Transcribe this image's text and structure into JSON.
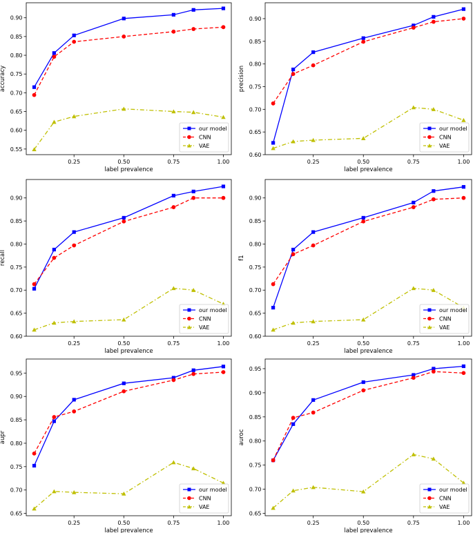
{
  "chart_data": [
    {
      "type": "line",
      "ylabel": "accuracy",
      "xlabel": "label prevalence",
      "x": [
        0.05,
        0.15,
        0.25,
        0.5,
        0.75,
        0.85,
        1.0
      ],
      "xlim": [
        0.01,
        1.04
      ],
      "xticks": [
        "0.25",
        "0.50",
        "0.75",
        "1.00"
      ],
      "ylim": [
        0.535,
        0.94
      ],
      "yticks": [
        "0.55",
        "0.60",
        "0.65",
        "0.70",
        "0.75",
        "0.80",
        "0.85",
        "0.90"
      ],
      "legend": "lower-right",
      "series": [
        {
          "name": "our model",
          "color": "#0000ff",
          "marker": "square",
          "dash": "solid",
          "values": [
            0.715,
            0.806,
            0.853,
            0.898,
            0.908,
            0.921,
            0.925
          ]
        },
        {
          "name": "CNN",
          "color": "#ff0000",
          "marker": "circle",
          "dash": "dashed",
          "values": [
            0.694,
            0.796,
            0.836,
            0.85,
            0.863,
            0.87,
            0.875
          ]
        },
        {
          "name": "VAE",
          "color": "#bfbf00",
          "marker": "triangle",
          "dash": "dashdot",
          "values": [
            0.549,
            0.622,
            0.637,
            0.657,
            0.65,
            0.648,
            0.635
          ]
        }
      ]
    },
    {
      "type": "line",
      "ylabel": "precision",
      "xlabel": "label prevalence",
      "x": [
        0.05,
        0.15,
        0.25,
        0.5,
        0.75,
        0.85,
        1.0
      ],
      "xlim": [
        0.01,
        1.04
      ],
      "xticks": [
        "0.25",
        "0.50",
        "0.75",
        "1.00"
      ],
      "ylim": [
        0.6,
        0.935
      ],
      "yticks": [
        "0.60",
        "0.65",
        "0.70",
        "0.75",
        "0.80",
        "0.85",
        "0.90"
      ],
      "legend": "lower-right",
      "series": [
        {
          "name": "our model",
          "color": "#0000ff",
          "marker": "square",
          "dash": "solid",
          "values": [
            0.626,
            0.788,
            0.826,
            0.857,
            0.885,
            0.904,
            0.921
          ]
        },
        {
          "name": "CNN",
          "color": "#ff0000",
          "marker": "circle",
          "dash": "dashed",
          "values": [
            0.713,
            0.778,
            0.797,
            0.849,
            0.88,
            0.893,
            0.9
          ]
        },
        {
          "name": "VAE",
          "color": "#bfbf00",
          "marker": "triangle",
          "dash": "dashdot",
          "values": [
            0.614,
            0.629,
            0.632,
            0.636,
            0.704,
            0.7,
            0.676
          ]
        }
      ]
    },
    {
      "type": "line",
      "ylabel": "recall",
      "xlabel": "label prevalence",
      "x": [
        0.05,
        0.15,
        0.25,
        0.5,
        0.75,
        0.85,
        1.0
      ],
      "xlim": [
        0.01,
        1.04
      ],
      "xticks": [
        "0.25",
        "0.50",
        "0.75",
        "1.00"
      ],
      "ylim": [
        0.6,
        0.94
      ],
      "yticks": [
        "0.60",
        "0.65",
        "0.70",
        "0.75",
        "0.80",
        "0.85",
        "0.90"
      ],
      "legend": "lower-right",
      "series": [
        {
          "name": "our model",
          "color": "#0000ff",
          "marker": "square",
          "dash": "solid",
          "values": [
            0.703,
            0.788,
            0.826,
            0.857,
            0.905,
            0.914,
            0.925
          ]
        },
        {
          "name": "CNN",
          "color": "#ff0000",
          "marker": "circle",
          "dash": "dashed",
          "values": [
            0.713,
            0.77,
            0.797,
            0.849,
            0.88,
            0.9,
            0.9
          ]
        },
        {
          "name": "VAE",
          "color": "#bfbf00",
          "marker": "triangle",
          "dash": "dashdot",
          "values": [
            0.614,
            0.629,
            0.632,
            0.636,
            0.704,
            0.7,
            0.67
          ]
        }
      ]
    },
    {
      "type": "line",
      "ylabel": "f1",
      "xlabel": "label prevalence",
      "x": [
        0.05,
        0.15,
        0.25,
        0.5,
        0.75,
        0.85,
        1.0
      ],
      "xlim": [
        0.01,
        1.04
      ],
      "xticks": [
        "0.25",
        "0.50",
        "0.75",
        "1.00"
      ],
      "ylim": [
        0.6,
        0.94
      ],
      "yticks": [
        "0.60",
        "0.65",
        "0.70",
        "0.75",
        "0.80",
        "0.85",
        "0.90"
      ],
      "legend": "lower-right",
      "series": [
        {
          "name": "our model",
          "color": "#0000ff",
          "marker": "square",
          "dash": "solid",
          "values": [
            0.662,
            0.788,
            0.826,
            0.857,
            0.89,
            0.915,
            0.924
          ]
        },
        {
          "name": "CNN",
          "color": "#ff0000",
          "marker": "circle",
          "dash": "dashed",
          "values": [
            0.713,
            0.778,
            0.797,
            0.849,
            0.88,
            0.897,
            0.9
          ]
        },
        {
          "name": "VAE",
          "color": "#bfbf00",
          "marker": "triangle",
          "dash": "dashdot",
          "values": [
            0.614,
            0.629,
            0.632,
            0.636,
            0.704,
            0.7,
            0.662
          ]
        }
      ]
    },
    {
      "type": "line",
      "ylabel": "aupr",
      "xlabel": "label prevalence",
      "x": [
        0.05,
        0.15,
        0.25,
        0.5,
        0.75,
        0.85,
        1.0
      ],
      "xlim": [
        0.01,
        1.04
      ],
      "xticks": [
        "0.25",
        "0.50",
        "0.75",
        "1.00"
      ],
      "ylim": [
        0.645,
        0.98
      ],
      "yticks": [
        "0.65",
        "0.70",
        "0.75",
        "0.80",
        "0.85",
        "0.90",
        "0.95"
      ],
      "legend": "lower-right",
      "series": [
        {
          "name": "our model",
          "color": "#0000ff",
          "marker": "square",
          "dash": "solid",
          "values": [
            0.752,
            0.847,
            0.893,
            0.928,
            0.94,
            0.956,
            0.964
          ]
        },
        {
          "name": "CNN",
          "color": "#ff0000",
          "marker": "circle",
          "dash": "dashed",
          "values": [
            0.778,
            0.856,
            0.868,
            0.911,
            0.935,
            0.948,
            0.952
          ]
        },
        {
          "name": "VAE",
          "color": "#bfbf00",
          "marker": "triangle",
          "dash": "dashdot",
          "values": [
            0.66,
            0.697,
            0.695,
            0.692,
            0.759,
            0.746,
            0.715
          ]
        }
      ]
    },
    {
      "type": "line",
      "ylabel": "auroc",
      "xlabel": "label prevalence",
      "x": [
        0.05,
        0.15,
        0.25,
        0.5,
        0.75,
        0.85,
        1.0
      ],
      "xlim": [
        0.01,
        1.04
      ],
      "xticks": [
        "0.25",
        "0.50",
        "0.75",
        "1.00"
      ],
      "ylim": [
        0.645,
        0.97
      ],
      "yticks": [
        "0.65",
        "0.70",
        "0.75",
        "0.80",
        "0.85",
        "0.90",
        "0.95"
      ],
      "legend": "lower-right",
      "series": [
        {
          "name": "our model",
          "color": "#0000ff",
          "marker": "square",
          "dash": "solid",
          "values": [
            0.76,
            0.835,
            0.885,
            0.922,
            0.937,
            0.95,
            0.955
          ]
        },
        {
          "name": "CNN",
          "color": "#ff0000",
          "marker": "circle",
          "dash": "dashed",
          "values": [
            0.76,
            0.848,
            0.859,
            0.905,
            0.931,
            0.944,
            0.941
          ]
        },
        {
          "name": "VAE",
          "color": "#bfbf00",
          "marker": "triangle",
          "dash": "dashdot",
          "values": [
            0.661,
            0.697,
            0.704,
            0.695,
            0.772,
            0.763,
            0.713
          ]
        }
      ]
    }
  ]
}
